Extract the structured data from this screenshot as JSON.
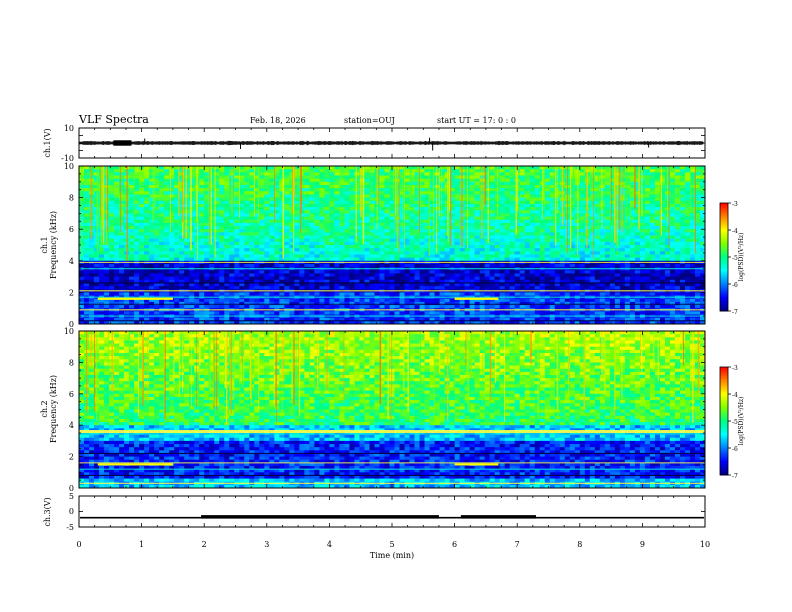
{
  "header": {
    "title": "VLF Spectra",
    "date": "Feb. 18, 2026",
    "station": "station=OUJ",
    "start": "start  UT =   17: 0  : 0"
  },
  "colors": {
    "colormap": [
      "#000080",
      "#0000ff",
      "#0080ff",
      "#00ffff",
      "#00ff80",
      "#80ff00",
      "#ffff00",
      "#ff8000",
      "#ff0000",
      "#ffffff"
    ],
    "trace": "#000000",
    "axis": "#000000"
  },
  "chart_data": [
    {
      "type": "line",
      "name": "ch1-waveform",
      "ylabel": "ch.1(V)",
      "ylim": [
        -10,
        10
      ],
      "yticks": [
        "10",
        "-10"
      ],
      "xlim": [
        0,
        10
      ],
      "baseline": 0,
      "note": "broadband VLF waveform, amplitude approx. +/-1 V with sporadic spikes"
    },
    {
      "type": "heatmap",
      "name": "ch1-spectrogram",
      "ylabel": "ch.1\nFrequency (kHz)",
      "ylabel_lines": [
        "ch.1",
        "Frequency (kHz)"
      ],
      "ylim": [
        0,
        10
      ],
      "yticks": [
        "0",
        "2",
        "4",
        "6",
        "8",
        "10"
      ],
      "xlim": [
        0,
        10
      ],
      "colorbar": {
        "label": "log(PSD)(V²/Hz)",
        "range": [
          -7,
          -3
        ],
        "ticks": [
          "-3",
          "-4",
          "-5",
          "-6",
          "-7"
        ]
      },
      "quiet_band_khz": [
        2.0,
        4.0
      ],
      "noise_band_khz": [
        4.0,
        10.0
      ],
      "tone_khz": [
        1.6,
        3.9
      ]
    },
    {
      "type": "heatmap",
      "name": "ch2-spectrogram",
      "ylabel": "ch.2\nFrequency (kHz)",
      "ylabel_lines": [
        "ch.2",
        "Frequency (kHz)"
      ],
      "ylim": [
        0,
        10
      ],
      "yticks": [
        "0",
        "2",
        "4",
        "6",
        "8",
        "10"
      ],
      "xlim": [
        0,
        10
      ],
      "colorbar": {
        "label": "log(PSD)(V²/Hz)",
        "range": [
          -7,
          -3
        ],
        "ticks": [
          "-3",
          "-4",
          "-5",
          "-6",
          "-7"
        ]
      },
      "quiet_band_khz": [
        0.5,
        3.0
      ],
      "noise_band_khz": [
        4.0,
        10.0
      ],
      "tone_khz": [
        1.5,
        3.5
      ]
    },
    {
      "type": "line",
      "name": "ch3-waveform",
      "ylabel": "ch.3(V)",
      "ylim": [
        -5,
        5
      ],
      "yticks": [
        "5",
        "0",
        "-5"
      ],
      "xlim": [
        0,
        10
      ],
      "baseline": -2,
      "thick_segments_min": [
        [
          1.95,
          5.75
        ],
        [
          6.1,
          7.3
        ]
      ]
    }
  ],
  "xaxis": {
    "label": "Time (min)",
    "ticks": [
      "0",
      "1",
      "2",
      "3",
      "4",
      "5",
      "6",
      "7",
      "8",
      "9",
      "10"
    ],
    "range": [
      0,
      10
    ]
  }
}
